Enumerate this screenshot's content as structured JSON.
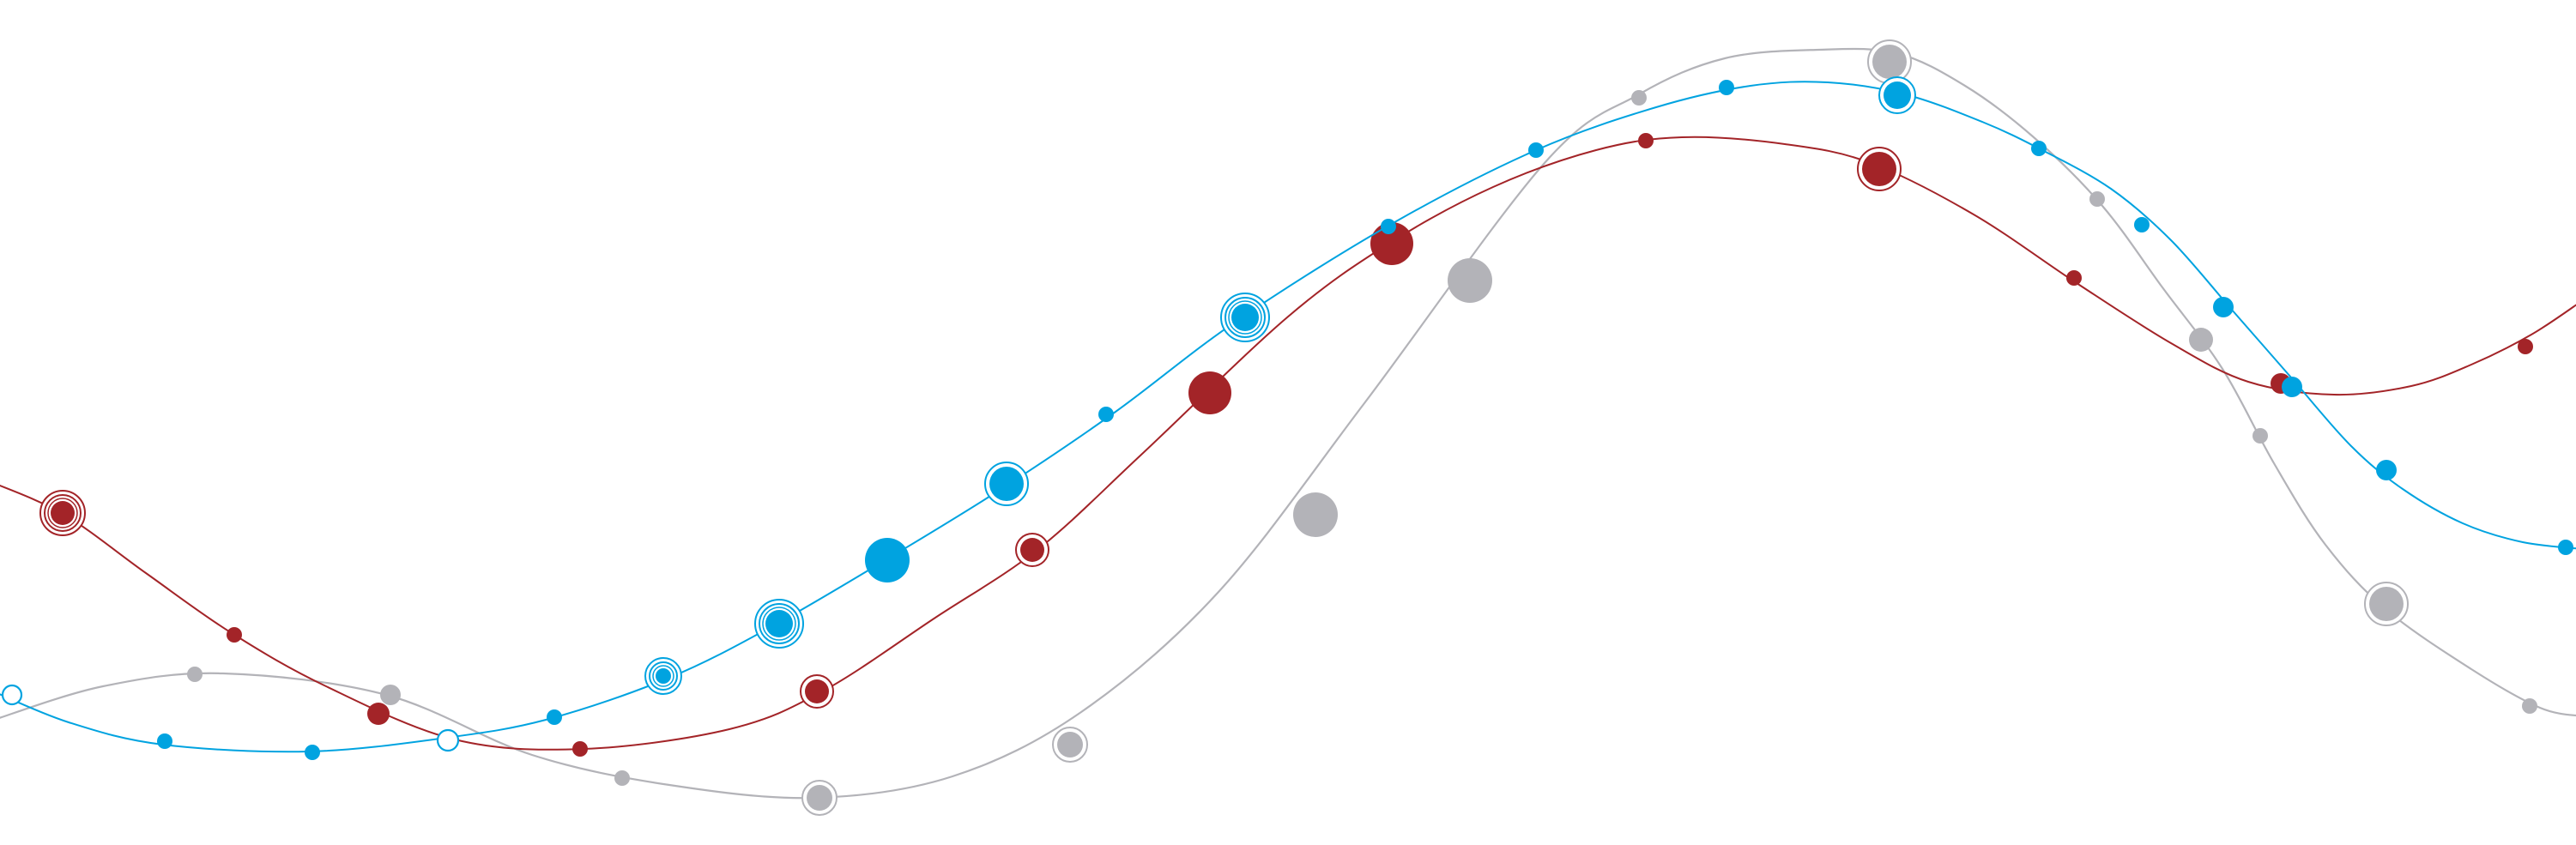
{
  "colors": {
    "background": "#ffffff",
    "blue": "#00a3e0",
    "red": "#a32428",
    "gray": "#b3b3b8"
  },
  "series": [
    {
      "key": "gray",
      "color_ref": "gray"
    },
    {
      "key": "red",
      "color_ref": "red"
    },
    {
      "key": "blue",
      "color_ref": "blue"
    }
  ]
}
